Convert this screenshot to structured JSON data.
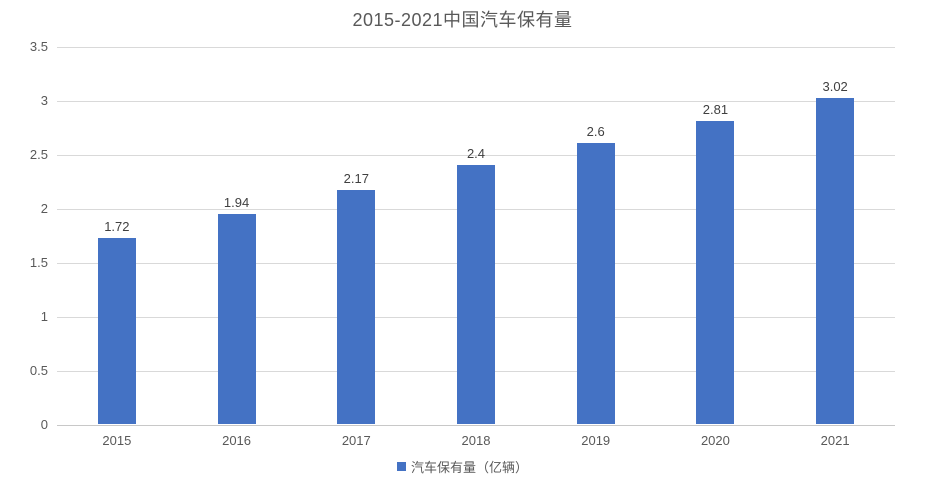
{
  "chart_data": {
    "type": "bar",
    "title": "2015-2021中国汽车保有量",
    "categories": [
      "2015",
      "2016",
      "2017",
      "2018",
      "2019",
      "2020",
      "2021"
    ],
    "values": [
      1.72,
      1.94,
      2.17,
      2.4,
      2.6,
      2.81,
      3.02
    ],
    "value_labels": [
      "1.72",
      "1.94",
      "2.17",
      "2.4",
      "2.6",
      "2.81",
      "3.02"
    ],
    "series_name": "汽车保有量（亿辆）",
    "legend": [
      {
        "label": "汽车保有量（亿辆）",
        "color": "#4472c4"
      }
    ],
    "legend_position": "bottom",
    "xlabel": "",
    "ylabel": "",
    "ylim": [
      0,
      3.5
    ],
    "ytick_step": 0.5,
    "yticks": [
      "0",
      "0.5",
      "1",
      "1.5",
      "2",
      "2.5",
      "3",
      "3.5"
    ],
    "grid": true,
    "colors": {
      "bar": "#4472c4",
      "gridline": "#d9d9d9",
      "axis_line": "#c8c8c8",
      "tick_text": "#595959",
      "title_text": "#595959",
      "data_label_text": "#404040"
    }
  }
}
